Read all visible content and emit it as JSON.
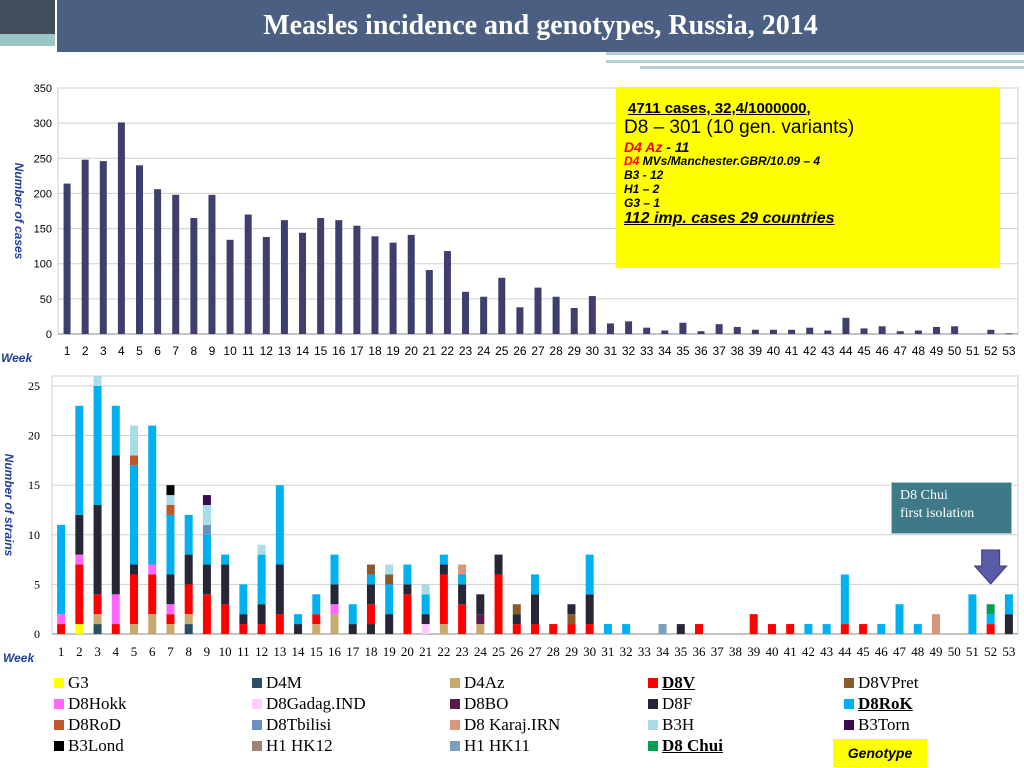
{
  "header": {
    "title": "Measles incidence and genotypes, Russia, 2014"
  },
  "infobox": {
    "line1": "4711 cases, 32,4/1000000,",
    "line2": "D8 – 301 (10 gen. variants)",
    "line3_a": "D4 Az",
    "line3_b": " - ",
    "line3_c": "11",
    "line4_a": "D4",
    "line4_b": " MVs/Manchester.GBR/10.09 – 4",
    "line5": "B3  - 12",
    "line6": "H1 – 2",
    "line7": "G3 – 1",
    "line8": "112 imp. cases 29 countries"
  },
  "callout": {
    "line1": "D8 Chui",
    "line2": "first isolation"
  },
  "genotype_label": "Genotype",
  "colors": {
    "cases_bar": "#3f3f6e",
    "G3": "#ffff00",
    "D4M": "#2a4f63",
    "D4Az": "#c8a96e",
    "D8V": "#ff0000",
    "D8VPret": "#8b5a2b",
    "D8Hokk": "#ff66ff",
    "D8Gadag.IND": "#ffccff",
    "D8BO": "#5a1a4a",
    "D8F": "#262636",
    "D8RoK": "#00b0f0",
    "D8RoD": "#c0562a",
    "D8Tbilisi": "#6a8fc0",
    "D8 Karaj.IRN": "#d9967a",
    "B3H": "#a8dde8",
    "B3Torn": "#3a0a50",
    "B3Lond": "#000000",
    "H1 HK12": "#9c8477",
    "H1 HK11": "#7a9fbf",
    "D8 Chui": "#00a050"
  },
  "legend": [
    {
      "key": "G3",
      "label": "G3"
    },
    {
      "key": "D4M",
      "label": "D4M"
    },
    {
      "key": "D4Az",
      "label": "D4Az"
    },
    {
      "key": "D8V",
      "label": "D8V",
      "emph": true
    },
    {
      "key": "D8VPret",
      "label": "D8VPret"
    },
    {
      "key": "D8Hokk",
      "label": "D8Hokk"
    },
    {
      "key": "D8Gadag.IND",
      "label": "D8Gadag.IND"
    },
    {
      "key": "D8BO",
      "label": "D8BO"
    },
    {
      "key": "D8F",
      "label": "D8F"
    },
    {
      "key": "D8RoK",
      "label": "D8RoK",
      "emph": true
    },
    {
      "key": "D8RoD",
      "label": "D8RoD"
    },
    {
      "key": "D8Tbilisi",
      "label": "D8Tbilisi"
    },
    {
      "key": "D8 Karaj.IRN",
      "label": "D8 Karaj.IRN"
    },
    {
      "key": "B3H",
      "label": "B3H"
    },
    {
      "key": "B3Torn",
      "label": "B3Torn"
    },
    {
      "key": "B3Lond",
      "label": "B3Lond"
    },
    {
      "key": "H1 HK12",
      "label": "H1 HK12"
    },
    {
      "key": "H1 HK11",
      "label": "H1 HK11"
    },
    {
      "key": "D8 Chui",
      "label": "D8 Chui",
      "emph": true
    }
  ],
  "chart_data": [
    {
      "type": "bar",
      "title": "",
      "xlabel": "Week",
      "ylabel": "Number of cases",
      "ylim": [
        0,
        350
      ],
      "yticks": [
        0,
        50,
        100,
        150,
        200,
        250,
        300,
        350
      ],
      "categories": [
        "1",
        "2",
        "3",
        "4",
        "5",
        "6",
        "7",
        "8",
        "9",
        "10",
        "11",
        "12",
        "13",
        "14",
        "15",
        "16",
        "17",
        "18",
        "19",
        "20",
        "21",
        "22",
        "23",
        "24",
        "25",
        "26",
        "27",
        "28",
        "29",
        "30",
        "31",
        "32",
        "33",
        "34",
        "35",
        "36",
        "37",
        "38",
        "39",
        "40",
        "41",
        "42",
        "43",
        "44",
        "45",
        "46",
        "47",
        "48",
        "49",
        "50",
        "51",
        "52",
        "53"
      ],
      "values": [
        214,
        248,
        246,
        301,
        240,
        206,
        198,
        165,
        198,
        134,
        170,
        138,
        162,
        144,
        165,
        162,
        154,
        139,
        130,
        141,
        91,
        118,
        60,
        53,
        80,
        38,
        66,
        53,
        37,
        54,
        15,
        18,
        9,
        5,
        16,
        4,
        14,
        10,
        6,
        6,
        6,
        9,
        5,
        23,
        8,
        11,
        4,
        5,
        10,
        11,
        0,
        6,
        1
      ]
    },
    {
      "type": "bar",
      "stacked": true,
      "title": "",
      "xlabel": "Week",
      "ylabel": "Number of strains",
      "ylim": [
        0,
        26
      ],
      "yticks": [
        0,
        5,
        10,
        15,
        20,
        25
      ],
      "categories": [
        "1",
        "2",
        "3",
        "4",
        "5",
        "6",
        "7",
        "8",
        "9",
        "10",
        "11",
        "12",
        "13",
        "14",
        "15",
        "16",
        "17",
        "18",
        "19",
        "20",
        "21",
        "22",
        "23",
        "24",
        "25",
        "26",
        "27",
        "28",
        "29",
        "30",
        "31",
        "32",
        "33",
        "34",
        "35",
        "36",
        "37",
        "38",
        "39",
        "40",
        "41",
        "42",
        "43",
        "44",
        "45",
        "46",
        "47",
        "48",
        "49",
        "50",
        "51",
        "52",
        "53"
      ],
      "stacks": [
        [
          [
            "D8V",
            1
          ],
          [
            "D8Hokk",
            1
          ],
          [
            "D8RoK",
            9
          ]
        ],
        [
          [
            "G3",
            1
          ],
          [
            "D8V",
            6
          ],
          [
            "D8Hokk",
            1
          ],
          [
            "D8F",
            4
          ],
          [
            "D8RoK",
            11
          ]
        ],
        [
          [
            "D4M",
            1
          ],
          [
            "D4Az",
            1
          ],
          [
            "D8V",
            2
          ],
          [
            "D8F",
            9
          ],
          [
            "D8RoK",
            12
          ],
          [
            "B3H",
            1
          ]
        ],
        [
          [
            "D8V",
            1
          ],
          [
            "D8Hokk",
            3
          ],
          [
            "D8F",
            14
          ],
          [
            "D8RoK",
            5
          ]
        ],
        [
          [
            "D4Az",
            1
          ],
          [
            "D8V",
            5
          ],
          [
            "D8F",
            1
          ],
          [
            "D8RoK",
            10
          ],
          [
            "D8RoD",
            1
          ],
          [
            "B3H",
            3
          ]
        ],
        [
          [
            "D4Az",
            2
          ],
          [
            "D8V",
            4
          ],
          [
            "D8Hokk",
            1
          ],
          [
            "D8RoK",
            14
          ]
        ],
        [
          [
            "D4Az",
            1
          ],
          [
            "D8V",
            1
          ],
          [
            "D8Hokk",
            1
          ],
          [
            "D8F",
            3
          ],
          [
            "D8RoK",
            6
          ],
          [
            "D8RoD",
            1
          ],
          [
            "B3H",
            1
          ],
          [
            "B3Lond",
            1
          ]
        ],
        [
          [
            "D4M",
            1
          ],
          [
            "D4Az",
            1
          ],
          [
            "D8V",
            3
          ],
          [
            "D8F",
            3
          ],
          [
            "D8RoK",
            4
          ]
        ],
        [
          [
            "D8V",
            4
          ],
          [
            "D8F",
            3
          ],
          [
            "D8RoK",
            3
          ],
          [
            "D8Tbilisi",
            1
          ],
          [
            "B3H",
            2
          ],
          [
            "B3Torn",
            1
          ]
        ],
        [
          [
            "D8V",
            3
          ],
          [
            "D8F",
            4
          ],
          [
            "D8RoK",
            1
          ]
        ],
        [
          [
            "D8V",
            1
          ],
          [
            "D8F",
            1
          ],
          [
            "D8RoK",
            3
          ]
        ],
        [
          [
            "D8V",
            1
          ],
          [
            "D8F",
            2
          ],
          [
            "D8RoK",
            5
          ],
          [
            "B3H",
            1
          ]
        ],
        [
          [
            "D8V",
            2
          ],
          [
            "D8F",
            5
          ],
          [
            "D8RoK",
            8
          ]
        ],
        [
          [
            "D8F",
            1
          ],
          [
            "D8RoK",
            1
          ]
        ],
        [
          [
            "D4Az",
            1
          ],
          [
            "D8V",
            1
          ],
          [
            "D8RoK",
            2
          ]
        ],
        [
          [
            "D4Az",
            2
          ],
          [
            "D8Hokk",
            1
          ],
          [
            "D8F",
            2
          ],
          [
            "D8RoK",
            3
          ]
        ],
        [
          [
            "D8F",
            1
          ],
          [
            "D8RoK",
            2
          ]
        ],
        [
          [
            "D8F",
            1
          ],
          [
            "D8V",
            2
          ],
          [
            "D8F",
            2
          ],
          [
            "D8RoK",
            1
          ],
          [
            "D8VPret",
            1
          ]
        ],
        [
          [
            "D8F",
            2
          ],
          [
            "D8RoK",
            3
          ],
          [
            "D8VPret",
            1
          ],
          [
            "B3H",
            1
          ]
        ],
        [
          [
            "D8V",
            4
          ],
          [
            "D8F",
            1
          ],
          [
            "D8RoK",
            2
          ]
        ],
        [
          [
            "D8Gadag.IND",
            1
          ],
          [
            "D8F",
            1
          ],
          [
            "D8RoK",
            2
          ],
          [
            "B3H",
            1
          ]
        ],
        [
          [
            "D4Az",
            1
          ],
          [
            "D8V",
            5
          ],
          [
            "D8F",
            1
          ],
          [
            "D8RoK",
            1
          ]
        ],
        [
          [
            "D8V",
            3
          ],
          [
            "D8F",
            2
          ],
          [
            "D8RoK",
            1
          ],
          [
            "D8 Karaj.IRN",
            1
          ]
        ],
        [
          [
            "D4Az",
            1
          ],
          [
            "D8BO",
            1
          ],
          [
            "D8F",
            2
          ]
        ],
        [
          [
            "D8V",
            6
          ],
          [
            "D8F",
            2
          ]
        ],
        [
          [
            "D8V",
            1
          ],
          [
            "D8F",
            1
          ],
          [
            "D8VPret",
            1
          ]
        ],
        [
          [
            "D8V",
            1
          ],
          [
            "D8F",
            3
          ],
          [
            "D8RoK",
            2
          ]
        ],
        [
          [
            "D8V",
            1
          ]
        ],
        [
          [
            "D8V",
            1
          ],
          [
            "D8VPret",
            1
          ],
          [
            "D8F",
            1
          ]
        ],
        [
          [
            "D8V",
            1
          ],
          [
            "D8F",
            3
          ],
          [
            "D8RoK",
            4
          ]
        ],
        [
          [
            "D8RoK",
            1
          ]
        ],
        [
          [
            "D8RoK",
            1
          ]
        ],
        [],
        [
          [
            "H1 HK11",
            1
          ]
        ],
        [
          [
            "D8F",
            1
          ]
        ],
        [
          [
            "D8V",
            1
          ]
        ],
        [],
        [],
        [
          [
            "D8V",
            2
          ]
        ],
        [
          [
            "D8V",
            1
          ]
        ],
        [
          [
            "D8V",
            1
          ]
        ],
        [
          [
            "D8RoK",
            1
          ]
        ],
        [
          [
            "D8RoK",
            1
          ]
        ],
        [
          [
            "D8V",
            1
          ],
          [
            "D8RoK",
            5
          ]
        ],
        [
          [
            "D8V",
            1
          ]
        ],
        [
          [
            "D8RoK",
            1
          ]
        ],
        [
          [
            "D8RoK",
            3
          ]
        ],
        [
          [
            "D8RoK",
            1
          ]
        ],
        [
          [
            "D8 Karaj.IRN",
            2
          ]
        ],
        [],
        [
          [
            "D8RoK",
            4
          ]
        ],
        [
          [
            "D8V",
            1
          ],
          [
            "D8RoK",
            1
          ],
          [
            "D8 Chui",
            1
          ]
        ],
        [
          [
            "D8F",
            2
          ],
          [
            "D8RoK",
            2
          ]
        ]
      ]
    }
  ]
}
